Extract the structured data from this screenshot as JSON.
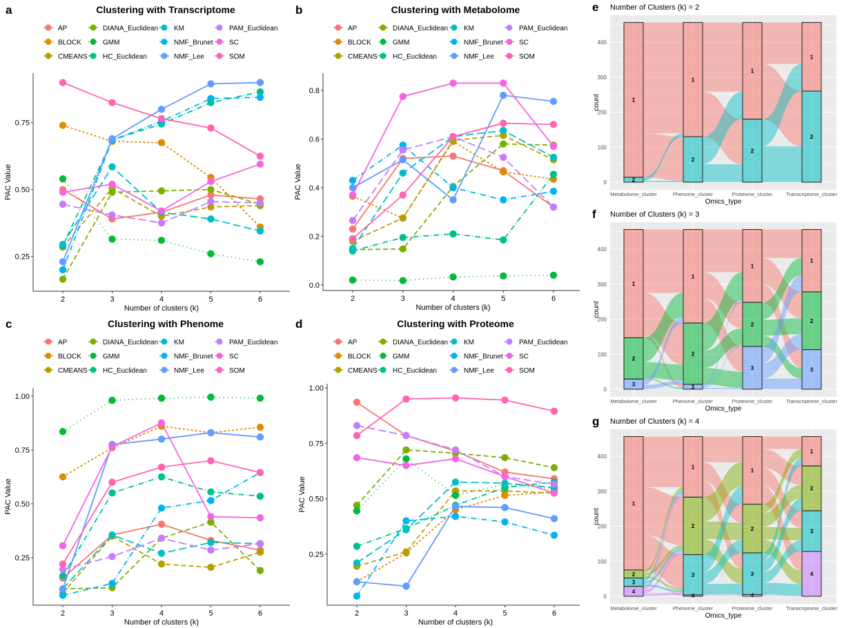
{
  "colors": {
    "AP": "#F8766D",
    "BLOCK": "#DE8C00",
    "CMEANS": "#B79F00",
    "DIANA_Euclidean": "#7CAE00",
    "GMM": "#00BA38",
    "HC_Euclidean": "#00C08B",
    "KM": "#00BFC4",
    "NMF_Brunet": "#00B4F0",
    "NMF_Lee": "#619CFF",
    "PAM_Euclidean": "#C77CFF",
    "SC": "#F564E3",
    "SOM": "#FF64B0"
  },
  "chart_data": [
    {
      "panel": "a",
      "type": "line",
      "title": "Clustering with Transcriptome",
      "xlabel": "Number of clusters (k)",
      "ylabel": "PAC Value",
      "x": [
        2,
        3,
        4,
        5,
        6
      ],
      "yticks": [
        0.25,
        0.5,
        0.75
      ],
      "ytick_labels": [
        "0.25",
        "0.50",
        "0.75"
      ],
      "ylim": [
        0.12,
        0.935
      ],
      "legend": "top",
      "series": [
        {
          "name": "AP",
          "values": [
            0.5,
            0.39,
            0.415,
            0.48,
            0.465
          ]
        },
        {
          "name": "BLOCK",
          "values": [
            0.74,
            0.68,
            0.675,
            0.545,
            0.36
          ]
        },
        {
          "name": "CMEANS",
          "values": [
            0.285,
            0.505,
            0.4,
            0.435,
            0.44
          ]
        },
        {
          "name": "DIANA_Euclidean",
          "values": [
            0.165,
            0.49,
            0.495,
            0.5,
            0.445
          ]
        },
        {
          "name": "GMM",
          "values": [
            0.54,
            0.315,
            0.31,
            0.26,
            0.23
          ]
        },
        {
          "name": "HC_Euclidean",
          "values": [
            0.29,
            0.685,
            0.745,
            0.825,
            0.865
          ]
        },
        {
          "name": "KM",
          "values": [
            0.295,
            0.585,
            0.415,
            0.39,
            0.345
          ]
        },
        {
          "name": "NMF_Brunet",
          "values": [
            0.2,
            0.685,
            0.755,
            0.84,
            0.845
          ]
        },
        {
          "name": "NMF_Lee",
          "values": [
            0.23,
            0.69,
            0.8,
            0.895,
            0.9
          ]
        },
        {
          "name": "PAM_Euclidean",
          "values": [
            0.445,
            0.405,
            0.375,
            0.455,
            0.45
          ]
        },
        {
          "name": "SC",
          "values": [
            0.49,
            0.52,
            0.42,
            0.53,
            0.595
          ]
        },
        {
          "name": "SOM",
          "values": [
            0.9,
            0.825,
            0.765,
            0.73,
            0.625
          ]
        }
      ]
    },
    {
      "panel": "b",
      "type": "line",
      "title": "Clustering with Metabolome",
      "xlabel": "Number of clusters (k)",
      "ylabel": "PAC Value",
      "x": [
        2,
        3,
        4,
        5,
        6
      ],
      "yticks": [
        0,
        0.2,
        0.4,
        0.6,
        0.8
      ],
      "ytick_labels": [
        "0.0",
        "0.2",
        "0.4",
        "0.6",
        "0.8"
      ],
      "ylim": [
        -0.023,
        0.871
      ],
      "legend": "top",
      "series": [
        {
          "name": "AP",
          "values": [
            0.23,
            0.52,
            0.53,
            0.47,
            0.32
          ]
        },
        {
          "name": "BLOCK",
          "values": [
            0.365,
            0.275,
            0.59,
            0.465,
            0.435
          ]
        },
        {
          "name": "CMEANS",
          "values": [
            0.18,
            0.275,
            0.595,
            0.615,
            0.515
          ]
        },
        {
          "name": "DIANA_Euclidean",
          "values": [
            0.145,
            0.148,
            0.405,
            0.58,
            0.575
          ]
        },
        {
          "name": "GMM",
          "values": [
            0.02,
            0.018,
            0.033,
            0.037,
            0.04
          ]
        },
        {
          "name": "HC_Euclidean",
          "values": [
            0.14,
            0.195,
            0.21,
            0.185,
            0.455
          ]
        },
        {
          "name": "KM",
          "values": [
            0.15,
            0.46,
            0.61,
            0.635,
            0.525
          ]
        },
        {
          "name": "NMF_Brunet",
          "values": [
            0.43,
            0.575,
            0.4,
            0.35,
            0.385
          ]
        },
        {
          "name": "NMF_Lee",
          "values": [
            0.4,
            0.515,
            0.35,
            0.78,
            0.755
          ]
        },
        {
          "name": "PAM_Euclidean",
          "values": [
            0.265,
            0.555,
            0.61,
            0.525,
            0.32
          ]
        },
        {
          "name": "SC",
          "values": [
            0.37,
            0.775,
            0.83,
            0.83,
            0.57
          ]
        },
        {
          "name": "SOM",
          "values": [
            0.19,
            0.37,
            0.61,
            0.665,
            0.66
          ]
        }
      ]
    },
    {
      "panel": "c",
      "type": "line",
      "title": "Clustering with Phenome",
      "xlabel": "Number of clusters (k)",
      "ylabel": "PAC Value",
      "x": [
        2,
        3,
        4,
        5,
        6
      ],
      "yticks": [
        0.25,
        0.5,
        0.75,
        1.0
      ],
      "ytick_labels": [
        "0.25",
        "0.50",
        "0.75",
        "1.00"
      ],
      "ylim": [
        0.029,
        1.038
      ],
      "legend": "top",
      "series": [
        {
          "name": "AP",
          "values": [
            0.155,
            0.355,
            0.405,
            0.33,
            0.285
          ]
        },
        {
          "name": "BLOCK",
          "values": [
            0.625,
            0.76,
            0.86,
            0.83,
            0.855
          ]
        },
        {
          "name": "CMEANS",
          "values": [
            0.085,
            0.35,
            0.22,
            0.205,
            0.275
          ]
        },
        {
          "name": "DIANA_Euclidean",
          "values": [
            0.105,
            0.11,
            0.34,
            0.415,
            0.19
          ]
        },
        {
          "name": "GMM",
          "values": [
            0.835,
            0.98,
            0.99,
            0.995,
            0.99
          ]
        },
        {
          "name": "HC_Euclidean",
          "values": [
            0.165,
            0.55,
            0.625,
            0.555,
            0.535
          ]
        },
        {
          "name": "KM",
          "values": [
            0.105,
            0.355,
            0.27,
            0.32,
            0.315
          ]
        },
        {
          "name": "NMF_Brunet",
          "values": [
            0.075,
            0.13,
            0.48,
            0.515,
            0.645
          ]
        },
        {
          "name": "NMF_Lee",
          "values": [
            0.105,
            0.775,
            0.8,
            0.83,
            0.81
          ]
        },
        {
          "name": "PAM_Euclidean",
          "values": [
            0.195,
            0.255,
            0.34,
            0.285,
            0.315
          ]
        },
        {
          "name": "SC",
          "values": [
            0.305,
            0.765,
            0.875,
            0.44,
            0.435
          ]
        },
        {
          "name": "SOM",
          "values": [
            0.22,
            0.6,
            0.67,
            0.7,
            0.645
          ]
        }
      ]
    },
    {
      "panel": "d",
      "type": "line",
      "title": "Clustering with Proteome",
      "xlabel": "Number of clusters (k)",
      "ylabel": "PAC Value",
      "x": [
        2,
        3,
        4,
        5,
        6
      ],
      "yticks": [
        0.25,
        0.5,
        0.75,
        1.0
      ],
      "ytick_labels": [
        "0.25",
        "0.50",
        "0.75",
        "1.00"
      ],
      "ylim": [
        0.019,
        1.019
      ],
      "legend": "top",
      "series": [
        {
          "name": "AP",
          "values": [
            0.935,
            0.785,
            0.715,
            0.62,
            0.59
          ]
        },
        {
          "name": "BLOCK",
          "values": [
            0.125,
            0.255,
            0.45,
            0.515,
            0.53
          ]
        },
        {
          "name": "CMEANS",
          "values": [
            0.195,
            0.26,
            0.535,
            0.535,
            0.525
          ]
        },
        {
          "name": "DIANA_Euclidean",
          "values": [
            0.47,
            0.72,
            0.705,
            0.685,
            0.64
          ]
        },
        {
          "name": "GMM",
          "values": [
            0.445,
            0.68,
            0.515,
            0.565,
            0.545
          ]
        },
        {
          "name": "HC_Euclidean",
          "values": [
            0.285,
            0.365,
            0.47,
            0.55,
            0.575
          ]
        },
        {
          "name": "KM",
          "values": [
            0.21,
            0.36,
            0.575,
            0.57,
            0.55
          ]
        },
        {
          "name": "NMF_Brunet",
          "values": [
            0.06,
            0.4,
            0.42,
            0.395,
            0.335
          ]
        },
        {
          "name": "NMF_Lee",
          "values": [
            0.125,
            0.105,
            0.465,
            0.46,
            0.41
          ]
        },
        {
          "name": "PAM_Euclidean",
          "values": [
            0.83,
            0.785,
            0.72,
            0.6,
            0.565
          ]
        },
        {
          "name": "SC",
          "values": [
            0.685,
            0.65,
            0.68,
            0.6,
            0.525
          ]
        },
        {
          "name": "SOM",
          "values": [
            0.785,
            0.95,
            0.955,
            0.945,
            0.895
          ]
        }
      ]
    },
    {
      "panel": "e",
      "type": "alluvial",
      "title": "Number of Clusters (k) = 2",
      "xlabel": "Omics_type",
      "ylabel": "count",
      "categories": [
        "Metabolome_cluster",
        "Phenome_cluster",
        "Proteome_cluster",
        "Transcriptome_cluster"
      ],
      "yticks": [
        0,
        100,
        200,
        300,
        400
      ],
      "ylim": [
        -20,
        470
      ],
      "fill_colors": [
        "#F8766D",
        "#00BFC4"
      ],
      "strata_labels": [
        "1",
        "2"
      ],
      "strata": [
        [
          442,
          14
        ],
        [
          326,
          130
        ],
        [
          276,
          180
        ],
        [
          196,
          260
        ]
      ]
    },
    {
      "panel": "f",
      "type": "alluvial",
      "title": "Number of Clusters (k) = 3",
      "xlabel": "Omics_type",
      "ylabel": "count",
      "categories": [
        "Metabolome_cluster",
        "Phenome_cluster",
        "Proteome_cluster",
        "Transcriptome_cluster"
      ],
      "yticks": [
        0,
        100,
        200,
        300,
        400
      ],
      "ylim": [
        -20,
        470
      ],
      "fill_colors": [
        "#F8766D",
        "#00BA38",
        "#619CFF"
      ],
      "strata_labels": [
        "1",
        "2",
        "3"
      ],
      "strata": [
        [
          309,
          118,
          29
        ],
        [
          267,
          175,
          14
        ],
        [
          208,
          126,
          122
        ],
        [
          178,
          165,
          113
        ]
      ]
    },
    {
      "panel": "g",
      "type": "alluvial",
      "title": "Number of Clusters (k) = 4",
      "xlabel": "Omics_type",
      "ylabel": "count",
      "categories": [
        "Metabolome_cluster",
        "Phenome_cluster",
        "Proteome_cluster",
        "Transcriptome_cluster"
      ],
      "yticks": [
        0,
        100,
        200,
        300,
        400
      ],
      "ylim": [
        -20,
        470
      ],
      "fill_colors": [
        "#F8766D",
        "#7CAE00",
        "#00BFC4",
        "#C77CFF"
      ],
      "strata_labels": [
        "1",
        "2",
        "3",
        "4"
      ],
      "strata": [
        [
          381,
          23,
          24,
          28
        ],
        [
          173,
          164,
          115,
          4
        ],
        [
          193,
          139,
          119,
          5
        ],
        [
          84,
          128,
          116,
          128
        ]
      ]
    }
  ]
}
